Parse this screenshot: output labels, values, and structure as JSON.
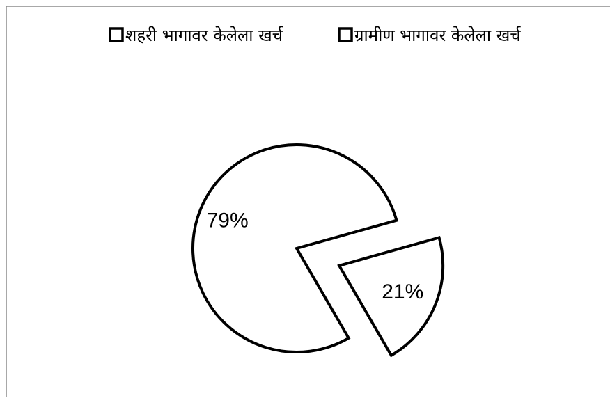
{
  "chart_data": {
    "type": "pie",
    "title": "",
    "categories": [
      "शहरी भागावर केलेला खर्च",
      "ग्रामीण भागावर केलेला खर्च"
    ],
    "values": [
      79,
      21
    ],
    "data_labels": [
      "79%",
      "21%"
    ],
    "exploded_slice": 1,
    "legend_position": "top",
    "colors": {
      "slice_fill": "#ffffff",
      "slice_stroke": "#000000",
      "frame": "#8c8c8c"
    }
  }
}
